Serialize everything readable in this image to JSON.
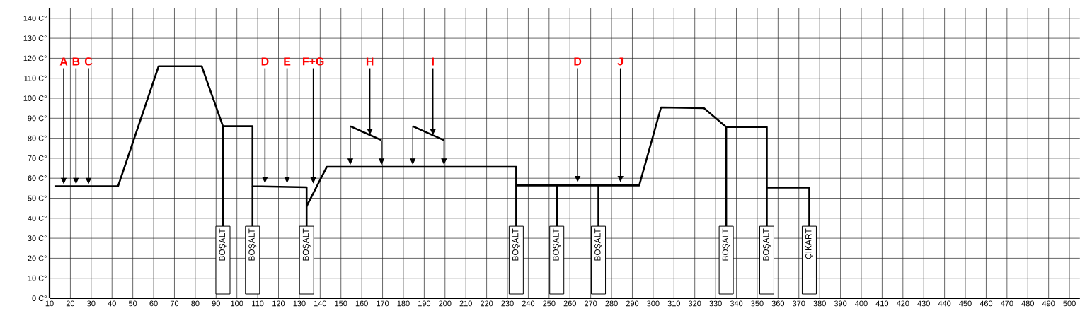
{
  "chart_data": {
    "type": "line",
    "series": [
      {
        "color": "#000000",
        "x": [
          12.7,
          42.9,
          62.4,
          83.1,
          93.3,
          107.5,
          107.5,
          133.5,
          133.5,
          143.2,
          234.2,
          234.2,
          293.3,
          303.8,
          324.3,
          335.1,
          354.6,
          354.6,
          375.0,
          375.0
        ],
        "values": [
          56,
          56,
          116,
          116,
          86,
          86,
          56,
          55.5,
          46,
          65.7,
          65.7,
          56.4,
          56.4,
          95.4,
          95.1,
          85.6,
          85.6,
          55.3,
          55.3,
          36
        ]
      },
      {
        "color": "#000000",
        "x": [
          93.3,
          93.3
        ],
        "values": [
          86,
          36
        ]
      },
      {
        "color": "#000000",
        "x": [
          107.5,
          107.5
        ],
        "values": [
          56,
          36
        ]
      },
      {
        "color": "#000000",
        "x": [
          133.5,
          133.5
        ],
        "values": [
          46,
          36
        ]
      },
      {
        "color": "#000000",
        "x": [
          234.2,
          234.2
        ],
        "values": [
          56.4,
          36
        ]
      },
      {
        "color": "#000000",
        "x": [
          253.7,
          253.7
        ],
        "values": [
          56.4,
          36
        ]
      },
      {
        "color": "#000000",
        "x": [
          273.7,
          273.7
        ],
        "values": [
          56.4,
          36
        ]
      },
      {
        "color": "#000000",
        "x": [
          335.1,
          335.1
        ],
        "values": [
          85.6,
          36
        ]
      },
      {
        "color": "#000000",
        "x": [
          354.6,
          354.6
        ],
        "values": [
          55.3,
          36
        ]
      },
      {
        "color": "#000000",
        "x": [
          154.5,
          169.5
        ],
        "values": [
          86,
          79
        ]
      },
      {
        "color": "#000000",
        "x": [
          184.5,
          199.5
        ],
        "values": [
          86,
          79
        ]
      }
    ],
    "xlim": [
      10,
      505
    ],
    "ylim": [
      0,
      145
    ],
    "xticks": [
      10,
      20,
      30,
      40,
      50,
      60,
      70,
      80,
      90,
      100,
      110,
      120,
      130,
      140,
      150,
      160,
      170,
      180,
      190,
      200,
      210,
      220,
      230,
      240,
      250,
      260,
      270,
      280,
      290,
      300,
      310,
      320,
      330,
      340,
      350,
      360,
      370,
      380,
      390,
      400,
      410,
      420,
      430,
      440,
      450,
      460,
      470,
      480,
      490,
      500
    ],
    "yticks": [
      {
        "value": 0,
        "label": "0 C°"
      },
      {
        "value": 10,
        "label": "10 C°"
      },
      {
        "value": 20,
        "label": "20 C°"
      },
      {
        "value": 30,
        "label": "30 C°"
      },
      {
        "value": 40,
        "label": "40 C°"
      },
      {
        "value": 50,
        "label": "50 C°"
      },
      {
        "value": 60,
        "label": "60 C°"
      },
      {
        "value": 70,
        "label": "70 C°"
      },
      {
        "value": 80,
        "label": "80 C°"
      },
      {
        "value": 90,
        "label": "90 C°"
      },
      {
        "value": 100,
        "label": "100 C°"
      },
      {
        "value": 110,
        "label": "110 C°"
      },
      {
        "value": 120,
        "label": "120 C°"
      },
      {
        "value": 130,
        "label": "130 C°"
      },
      {
        "value": 140,
        "label": "140 C°"
      }
    ],
    "grid": true,
    "marker": "none",
    "line_style": "solid",
    "annotations": [
      {
        "text": "A",
        "x": 16.8,
        "y": 57
      },
      {
        "text": "B",
        "x": 22.7,
        "y": 57
      },
      {
        "text": "C",
        "x": 28.7,
        "y": 57
      },
      {
        "text": "D",
        "x": 113.5,
        "y": 57.5
      },
      {
        "text": "E",
        "x": 124.1,
        "y": 57.5
      },
      {
        "text": "F+G",
        "x": 136.7,
        "y": 57.3
      },
      {
        "text": "H",
        "x": 163.9,
        "y": 81.6
      },
      {
        "text": "I",
        "x": 194.2,
        "y": 81.5
      },
      {
        "text": "D",
        "x": 263.7,
        "y": 58
      },
      {
        "text": "J",
        "x": 284.3,
        "y": 58
      },
      {
        "text": "BOŞALT",
        "x": 93.3,
        "y": 36
      },
      {
        "text": "BOŞALT",
        "x": 107.5,
        "y": 36
      },
      {
        "text": "BOŞALT",
        "x": 133.5,
        "y": 36
      },
      {
        "text": "BOŞALT",
        "x": 234.2,
        "y": 36
      },
      {
        "text": "BOŞALT",
        "x": 253.7,
        "y": 36
      },
      {
        "text": "BOŞALT",
        "x": 273.7,
        "y": 36
      },
      {
        "text": "BOŞALT",
        "x": 335.1,
        "y": 36
      },
      {
        "text": "BOŞALT",
        "x": 354.6,
        "y": 36
      },
      {
        "text": "ÇIKART",
        "x": 375.0,
        "y": 36
      }
    ]
  }
}
